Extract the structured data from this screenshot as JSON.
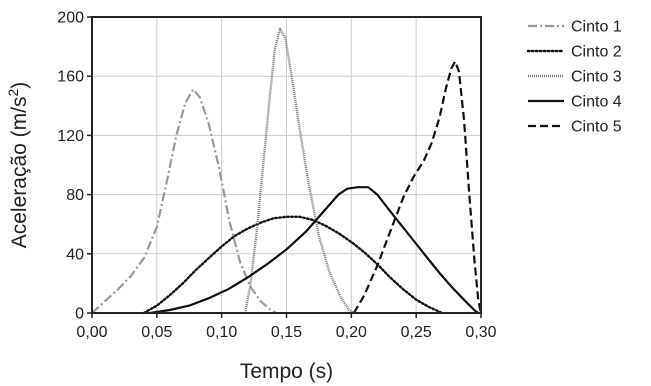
{
  "chart_data": {
    "type": "line",
    "title": "",
    "xlabel": "Tempo (s)",
    "ylabel_main": "Aceleração (m/s",
    "ylabel_sup": "2",
    "ylabel_end": ")",
    "xlim": [
      0,
      0.3
    ],
    "ylim": [
      0,
      200
    ],
    "xticks": [
      0,
      0.05,
      0.1,
      0.15,
      0.2,
      0.25,
      0.3
    ],
    "xtick_labels": [
      "0,00",
      "0,05",
      "0,10",
      "0,15",
      "0,20",
      "0,25",
      "0,30"
    ],
    "yticks": [
      0,
      40,
      80,
      120,
      160,
      200
    ],
    "ytick_labels": [
      "0",
      "40",
      "80",
      "120",
      "160",
      "200"
    ],
    "grid": true,
    "legend_position": "right",
    "series": [
      {
        "name": "Cinto 1",
        "style": "dashdot",
        "color": "#999999",
        "points": [
          [
            0.0,
            0
          ],
          [
            0.01,
            8
          ],
          [
            0.02,
            16
          ],
          [
            0.03,
            25
          ],
          [
            0.04,
            37
          ],
          [
            0.05,
            58
          ],
          [
            0.058,
            90
          ],
          [
            0.065,
            120
          ],
          [
            0.072,
            142
          ],
          [
            0.078,
            151
          ],
          [
            0.083,
            146
          ],
          [
            0.09,
            128
          ],
          [
            0.098,
            98
          ],
          [
            0.106,
            62
          ],
          [
            0.114,
            35
          ],
          [
            0.122,
            18
          ],
          [
            0.13,
            8
          ],
          [
            0.138,
            2
          ],
          [
            0.142,
            0
          ]
        ]
      },
      {
        "name": "Cinto 2",
        "style": "dotted",
        "color": "#111111",
        "points": [
          [
            0.04,
            0
          ],
          [
            0.05,
            5
          ],
          [
            0.06,
            12
          ],
          [
            0.07,
            20
          ],
          [
            0.08,
            29
          ],
          [
            0.09,
            37
          ],
          [
            0.1,
            45
          ],
          [
            0.11,
            52
          ],
          [
            0.12,
            57
          ],
          [
            0.13,
            61
          ],
          [
            0.14,
            64
          ],
          [
            0.15,
            65
          ],
          [
            0.16,
            65
          ],
          [
            0.17,
            63
          ],
          [
            0.18,
            59
          ],
          [
            0.19,
            54
          ],
          [
            0.2,
            48
          ],
          [
            0.21,
            41
          ],
          [
            0.22,
            33
          ],
          [
            0.23,
            24
          ],
          [
            0.24,
            16
          ],
          [
            0.25,
            9
          ],
          [
            0.26,
            4
          ],
          [
            0.27,
            0
          ]
        ]
      },
      {
        "name": "Cinto 3",
        "style": "fine-dotted",
        "color": "#777777",
        "points": [
          [
            0.118,
            0
          ],
          [
            0.122,
            18
          ],
          [
            0.127,
            55
          ],
          [
            0.132,
            100
          ],
          [
            0.137,
            145
          ],
          [
            0.141,
            178
          ],
          [
            0.145,
            192
          ],
          [
            0.149,
            186
          ],
          [
            0.154,
            160
          ],
          [
            0.16,
            125
          ],
          [
            0.167,
            88
          ],
          [
            0.175,
            52
          ],
          [
            0.183,
            28
          ],
          [
            0.191,
            12
          ],
          [
            0.198,
            2
          ],
          [
            0.202,
            0
          ]
        ]
      },
      {
        "name": "Cinto 4",
        "style": "solid",
        "color": "#111111",
        "points": [
          [
            0.045,
            0
          ],
          [
            0.06,
            2
          ],
          [
            0.075,
            5
          ],
          [
            0.09,
            10
          ],
          [
            0.105,
            16
          ],
          [
            0.12,
            24
          ],
          [
            0.135,
            33
          ],
          [
            0.15,
            43
          ],
          [
            0.165,
            55
          ],
          [
            0.178,
            68
          ],
          [
            0.19,
            80
          ],
          [
            0.197,
            84
          ],
          [
            0.205,
            85
          ],
          [
            0.213,
            85
          ],
          [
            0.22,
            80
          ],
          [
            0.228,
            71
          ],
          [
            0.237,
            61
          ],
          [
            0.247,
            50
          ],
          [
            0.258,
            38
          ],
          [
            0.268,
            27
          ],
          [
            0.278,
            17
          ],
          [
            0.288,
            8
          ],
          [
            0.296,
            1
          ],
          [
            0.298,
            0
          ]
        ]
      },
      {
        "name": "Cinto 5",
        "style": "dashed",
        "color": "#111111",
        "points": [
          [
            0.202,
            0
          ],
          [
            0.21,
            12
          ],
          [
            0.22,
            32
          ],
          [
            0.23,
            55
          ],
          [
            0.24,
            78
          ],
          [
            0.248,
            92
          ],
          [
            0.256,
            103
          ],
          [
            0.262,
            115
          ],
          [
            0.268,
            132
          ],
          [
            0.273,
            152
          ],
          [
            0.277,
            165
          ],
          [
            0.28,
            170
          ],
          [
            0.283,
            163
          ],
          [
            0.287,
            130
          ],
          [
            0.291,
            80
          ],
          [
            0.295,
            35
          ],
          [
            0.298,
            8
          ],
          [
            0.3,
            0
          ]
        ]
      }
    ]
  }
}
